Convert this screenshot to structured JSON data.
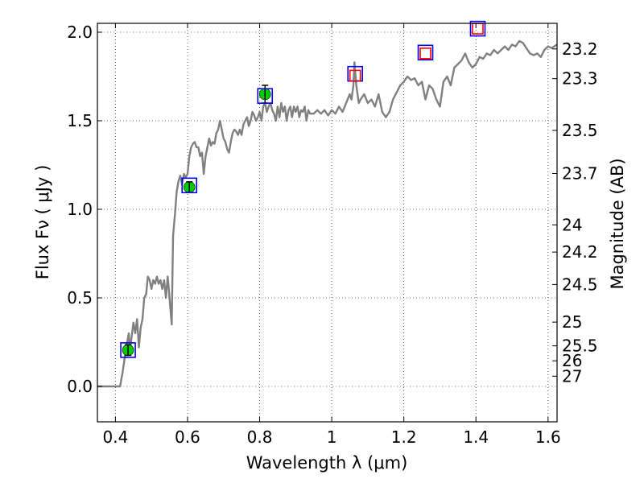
{
  "chart_data": {
    "type": "scatter",
    "title": "",
    "xlabel": "Wavelength  λ (μm)",
    "ylabel": "Flux  Fν  ( μJy )",
    "y2label": "Magnitude (AB)",
    "xlim": [
      0.35,
      1.625
    ],
    "ylim": [
      -0.2,
      2.05
    ],
    "grid": true,
    "xticks": [
      {
        "value": 0.4,
        "label": "0.4"
      },
      {
        "value": 0.6,
        "label": "0.6"
      },
      {
        "value": 0.8,
        "label": "0.8"
      },
      {
        "value": 1.0,
        "label": "1"
      },
      {
        "value": 1.2,
        "label": "1.2"
      },
      {
        "value": 1.4,
        "label": "1.4"
      },
      {
        "value": 1.6,
        "label": "1.6"
      }
    ],
    "yticks": [
      {
        "value": 0.0,
        "label": "0.0"
      },
      {
        "value": 0.5,
        "label": "0.5"
      },
      {
        "value": 1.0,
        "label": "1.0"
      },
      {
        "value": 1.5,
        "label": "1.5"
      },
      {
        "value": 2.0,
        "label": "2.0"
      }
    ],
    "y2ticks": [
      {
        "value": 23.2,
        "label": "23.2"
      },
      {
        "value": 23.3,
        "label": "23.3"
      },
      {
        "value": 23.5,
        "label": "23.5"
      },
      {
        "value": 23.7,
        "label": "23.7"
      },
      {
        "value": 24.0,
        "label": "24"
      },
      {
        "value": 24.2,
        "label": "24.2"
      },
      {
        "value": 24.5,
        "label": "24.5"
      },
      {
        "value": 25.0,
        "label": "25"
      },
      {
        "value": 25.5,
        "label": "25.5"
      },
      {
        "value": 26.0,
        "label": "26"
      },
      {
        "value": 27.0,
        "label": "27"
      }
    ],
    "model_spectrum": {
      "color": "#808080",
      "points": [
        [
          0.35,
          0.0
        ],
        [
          0.413,
          0.0
        ],
        [
          0.42,
          0.08
        ],
        [
          0.43,
          0.22
        ],
        [
          0.437,
          0.3
        ],
        [
          0.44,
          0.2
        ],
        [
          0.445,
          0.28
        ],
        [
          0.45,
          0.36
        ],
        [
          0.455,
          0.3
        ],
        [
          0.46,
          0.38
        ],
        [
          0.465,
          0.22
        ],
        [
          0.47,
          0.33
        ],
        [
          0.475,
          0.38
        ],
        [
          0.48,
          0.5
        ],
        [
          0.485,
          0.52
        ],
        [
          0.49,
          0.62
        ],
        [
          0.495,
          0.6
        ],
        [
          0.5,
          0.55
        ],
        [
          0.505,
          0.6
        ],
        [
          0.51,
          0.58
        ],
        [
          0.515,
          0.62
        ],
        [
          0.52,
          0.58
        ],
        [
          0.525,
          0.6
        ],
        [
          0.53,
          0.55
        ],
        [
          0.535,
          0.6
        ],
        [
          0.54,
          0.5
        ],
        [
          0.545,
          0.62
        ],
        [
          0.548,
          0.55
        ],
        [
          0.552,
          0.45
        ],
        [
          0.556,
          0.35
        ],
        [
          0.56,
          0.85
        ],
        [
          0.565,
          0.97
        ],
        [
          0.57,
          1.1
        ],
        [
          0.575,
          1.16
        ],
        [
          0.58,
          1.19
        ],
        [
          0.585,
          1.14
        ],
        [
          0.59,
          1.2
        ],
        [
          0.595,
          1.18
        ],
        [
          0.6,
          1.2
        ],
        [
          0.605,
          1.3
        ],
        [
          0.61,
          1.35
        ],
        [
          0.615,
          1.37
        ],
        [
          0.62,
          1.38
        ],
        [
          0.625,
          1.35
        ],
        [
          0.63,
          1.35
        ],
        [
          0.635,
          1.3
        ],
        [
          0.64,
          1.32
        ],
        [
          0.645,
          1.2
        ],
        [
          0.65,
          1.3
        ],
        [
          0.655,
          1.35
        ],
        [
          0.66,
          1.4
        ],
        [
          0.665,
          1.36
        ],
        [
          0.67,
          1.38
        ],
        [
          0.675,
          1.37
        ],
        [
          0.68,
          1.43
        ],
        [
          0.685,
          1.45
        ],
        [
          0.69,
          1.5
        ],
        [
          0.695,
          1.45
        ],
        [
          0.7,
          1.4
        ],
        [
          0.705,
          1.38
        ],
        [
          0.71,
          1.34
        ],
        [
          0.715,
          1.32
        ],
        [
          0.72,
          1.38
        ],
        [
          0.725,
          1.43
        ],
        [
          0.73,
          1.45
        ],
        [
          0.735,
          1.44
        ],
        [
          0.74,
          1.42
        ],
        [
          0.745,
          1.45
        ],
        [
          0.75,
          1.42
        ],
        [
          0.755,
          1.48
        ],
        [
          0.76,
          1.5
        ],
        [
          0.765,
          1.52
        ],
        [
          0.77,
          1.47
        ],
        [
          0.775,
          1.5
        ],
        [
          0.78,
          1.55
        ],
        [
          0.785,
          1.53
        ],
        [
          0.79,
          1.5
        ],
        [
          0.795,
          1.52
        ],
        [
          0.8,
          1.55
        ],
        [
          0.805,
          1.5
        ],
        [
          0.81,
          1.58
        ],
        [
          0.815,
          1.6
        ],
        [
          0.82,
          1.55
        ],
        [
          0.825,
          1.58
        ],
        [
          0.83,
          1.6
        ],
        [
          0.835,
          1.56
        ],
        [
          0.84,
          1.54
        ],
        [
          0.845,
          1.5
        ],
        [
          0.85,
          1.58
        ],
        [
          0.855,
          1.52
        ],
        [
          0.86,
          1.6
        ],
        [
          0.865,
          1.55
        ],
        [
          0.87,
          1.58
        ],
        [
          0.875,
          1.5
        ],
        [
          0.88,
          1.56
        ],
        [
          0.885,
          1.58
        ],
        [
          0.89,
          1.52
        ],
        [
          0.895,
          1.58
        ],
        [
          0.9,
          1.55
        ],
        [
          0.905,
          1.58
        ],
        [
          0.91,
          1.52
        ],
        [
          0.915,
          1.56
        ],
        [
          0.92,
          1.55
        ],
        [
          0.925,
          1.58
        ],
        [
          0.93,
          1.5
        ],
        [
          0.935,
          1.56
        ],
        [
          0.94,
          1.54
        ],
        [
          0.95,
          1.54
        ],
        [
          0.96,
          1.56
        ],
        [
          0.97,
          1.54
        ],
        [
          0.98,
          1.56
        ],
        [
          0.99,
          1.53
        ],
        [
          1.0,
          1.56
        ],
        [
          1.01,
          1.54
        ],
        [
          1.02,
          1.58
        ],
        [
          1.03,
          1.55
        ],
        [
          1.04,
          1.6
        ],
        [
          1.05,
          1.65
        ],
        [
          1.055,
          1.62
        ],
        [
          1.06,
          1.7
        ],
        [
          1.063,
          1.83
        ],
        [
          1.068,
          1.7
        ],
        [
          1.075,
          1.6
        ],
        [
          1.08,
          1.62
        ],
        [
          1.09,
          1.65
        ],
        [
          1.1,
          1.6
        ],
        [
          1.11,
          1.62
        ],
        [
          1.12,
          1.58
        ],
        [
          1.13,
          1.65
        ],
        [
          1.14,
          1.55
        ],
        [
          1.15,
          1.52
        ],
        [
          1.16,
          1.55
        ],
        [
          1.17,
          1.62
        ],
        [
          1.18,
          1.66
        ],
        [
          1.19,
          1.7
        ],
        [
          1.2,
          1.72
        ],
        [
          1.21,
          1.75
        ],
        [
          1.22,
          1.73
        ],
        [
          1.23,
          1.74
        ],
        [
          1.24,
          1.7
        ],
        [
          1.25,
          1.72
        ],
        [
          1.26,
          1.62
        ],
        [
          1.27,
          1.7
        ],
        [
          1.28,
          1.68
        ],
        [
          1.29,
          1.62
        ],
        [
          1.3,
          1.58
        ],
        [
          1.31,
          1.72
        ],
        [
          1.32,
          1.75
        ],
        [
          1.33,
          1.7
        ],
        [
          1.34,
          1.8
        ],
        [
          1.35,
          1.82
        ],
        [
          1.36,
          1.84
        ],
        [
          1.37,
          1.88
        ],
        [
          1.38,
          1.83
        ],
        [
          1.39,
          1.8
        ],
        [
          1.4,
          1.82
        ],
        [
          1.41,
          1.86
        ],
        [
          1.42,
          1.85
        ],
        [
          1.43,
          1.88
        ],
        [
          1.44,
          1.87
        ],
        [
          1.45,
          1.9
        ],
        [
          1.46,
          1.88
        ],
        [
          1.47,
          1.9
        ],
        [
          1.48,
          1.92
        ],
        [
          1.49,
          1.9
        ],
        [
          1.5,
          1.93
        ],
        [
          1.51,
          1.92
        ],
        [
          1.52,
          1.95
        ],
        [
          1.53,
          1.94
        ],
        [
          1.54,
          1.91
        ],
        [
          1.55,
          1.88
        ],
        [
          1.56,
          1.87
        ],
        [
          1.57,
          1.88
        ],
        [
          1.58,
          1.86
        ],
        [
          1.59,
          1.9
        ],
        [
          1.6,
          1.92
        ],
        [
          1.61,
          1.91
        ],
        [
          1.625,
          1.93
        ]
      ]
    },
    "series": [
      {
        "marker": "circle",
        "color": "#00cc00",
        "error_color": "#000000",
        "points": [
          {
            "x": 0.435,
            "y": 0.205,
            "yerr": 0.03
          },
          {
            "x": 0.605,
            "y": 1.125,
            "yerr": 0.03
          },
          {
            "x": 0.815,
            "y": 1.65,
            "yerr": 0.05
          }
        ]
      },
      {
        "marker": "square-open",
        "color": "#0000ff",
        "points": [
          {
            "x": 0.435,
            "y": 0.205
          },
          {
            "x": 0.605,
            "y": 1.135
          },
          {
            "x": 0.815,
            "y": 1.64
          },
          {
            "x": 1.065,
            "y": 1.765
          },
          {
            "x": 1.26,
            "y": 1.885
          },
          {
            "x": 1.405,
            "y": 2.02
          }
        ]
      },
      {
        "marker": "square-open",
        "color": "#ff0000",
        "points": [
          {
            "x": 1.065,
            "y": 1.755
          },
          {
            "x": 1.26,
            "y": 1.88
          },
          {
            "x": 1.405,
            "y": 2.02
          }
        ]
      }
    ]
  }
}
